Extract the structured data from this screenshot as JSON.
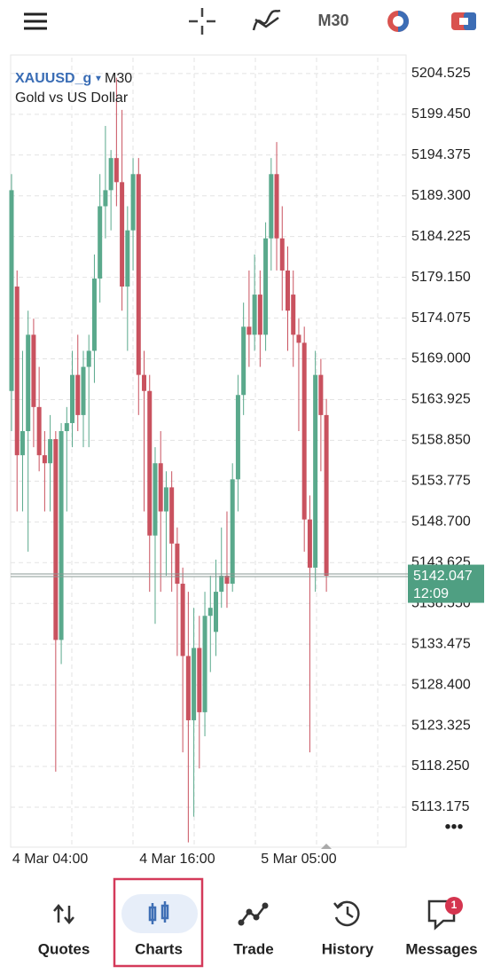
{
  "toolbar": {
    "timeframe": "M30"
  },
  "chart_data": {
    "type": "candlestick",
    "symbol": "XAUUSD_g",
    "timeframe": "M30",
    "subtitle": "Gold vs US Dollar",
    "up_color": "#5aa98c",
    "down_color": "#c9525f",
    "grid": true,
    "ylim": [
      5108.2,
      5206.5
    ],
    "yticks": [
      5204.525,
      {
        "value": 5199.45,
        "label": "5199.450"
      },
      5194.375,
      {
        "value": 5189.3,
        "label": "5189.300"
      },
      5184.225,
      {
        "value": 5179.15,
        "label": "5179.150"
      },
      5174.075,
      {
        "value": 5169,
        "label": "5169.000"
      },
      5163.925,
      {
        "value": 5158.85,
        "label": "5158.850"
      },
      5153.775,
      {
        "value": 5148.7,
        "label": "5148.700"
      },
      5143.625,
      {
        "value": 5138.55,
        "label": "5138.550"
      },
      5133.475,
      {
        "value": 5128.4,
        "label": "5128.400"
      },
      5123.325,
      {
        "value": 5118.25,
        "label": "5118.250"
      },
      5113.175
    ],
    "categories": [
      null,
      null,
      null,
      null,
      null,
      null,
      null,
      "4 Mar 04:00",
      null,
      null,
      null,
      null,
      null,
      null,
      null,
      null,
      null,
      null,
      null,
      null,
      null,
      null,
      null,
      null,
      null,
      null,
      null,
      null,
      null,
      null,
      "4 Mar 16:00",
      null,
      null,
      null,
      null,
      null,
      null,
      null,
      null,
      null,
      null,
      null,
      null,
      null,
      null,
      null,
      null,
      null,
      null,
      null,
      null,
      null,
      "5 Mar 05:00",
      null,
      null,
      null,
      null,
      null
    ],
    "ohlc": [
      [
        5165,
        5192,
        5160,
        5190
      ],
      [
        5178,
        5180,
        5150,
        5157
      ],
      [
        5157,
        5170,
        5150,
        5160
      ],
      [
        5160,
        5175,
        5145,
        5172
      ],
      [
        5172,
        5174,
        5158,
        5163
      ],
      [
        5163,
        5168,
        5155,
        5157
      ],
      [
        5157,
        5160,
        5150,
        5156
      ],
      [
        5156,
        5162,
        5150,
        5159
      ],
      [
        5159,
        5160,
        5117.6,
        5134
      ],
      [
        5134,
        5161,
        5131,
        5160
      ],
      [
        5160,
        5163,
        5150,
        5161
      ],
      [
        5161,
        5170,
        5158,
        5167
      ],
      [
        5167,
        5172,
        5160,
        5162
      ],
      [
        5162,
        5170,
        5158,
        5168
      ],
      [
        5168,
        5172,
        5158,
        5170
      ],
      [
        5170,
        5182,
        5166,
        5179
      ],
      [
        5179,
        5192,
        5176,
        5188
      ],
      [
        5188,
        5198,
        5184,
        5190
      ],
      [
        5190,
        5195,
        5185,
        5194
      ],
      [
        5194,
        5204,
        5188,
        5191
      ],
      [
        5191,
        5200,
        5175,
        5178
      ],
      [
        5178,
        5188,
        5170,
        5185
      ],
      [
        5185,
        5194,
        5180,
        5192
      ],
      [
        5192,
        5194,
        5162,
        5167
      ],
      [
        5167,
        5170,
        5150,
        5165
      ],
      [
        5165,
        5167,
        5140,
        5147
      ],
      [
        5147,
        5158,
        5136,
        5156
      ],
      [
        5156,
        5160,
        5140,
        5150
      ],
      [
        5150,
        5155,
        5142,
        5153
      ],
      [
        5153,
        5155,
        5140,
        5146
      ],
      [
        5146,
        5148,
        5132,
        5141
      ],
      [
        5141,
        5143,
        5120,
        5132
      ],
      [
        5132,
        5140,
        5108.8,
        5124
      ],
      [
        5124,
        5138,
        5112,
        5133
      ],
      [
        5133,
        5137,
        5118,
        5125
      ],
      [
        5125,
        5140,
        5122,
        5137
      ],
      [
        5137,
        5142,
        5130,
        5138
      ],
      [
        5135,
        5144,
        5132,
        5140
      ],
      [
        5140,
        5148,
        5138,
        5142
      ],
      [
        5142,
        5150,
        5138,
        5141
      ],
      [
        5141,
        5156,
        5140,
        5154
      ],
      [
        5154,
        5167,
        5150,
        5164.5
      ],
      [
        5164.5,
        5176,
        5162,
        5173
      ],
      [
        5173,
        5180,
        5168,
        5172
      ],
      [
        5172,
        5182,
        5170,
        5177
      ],
      [
        5177,
        5180,
        5168,
        5172
      ],
      [
        5172,
        5186,
        5170,
        5184
      ],
      [
        5184,
        5194,
        5180,
        5192
      ],
      [
        5192,
        5196,
        5180,
        5184
      ],
      [
        5184,
        5188,
        5175,
        5180
      ],
      [
        5180,
        5183,
        5170,
        5175
      ],
      [
        5177,
        5180,
        5168,
        5172
      ],
      [
        5172,
        5174,
        5160,
        5171
      ],
      [
        5171,
        5173,
        5145,
        5149
      ],
      [
        5149,
        5152,
        5120,
        5143
      ],
      [
        5143,
        5170,
        5140,
        5167
      ],
      [
        5167,
        5169,
        5155,
        5162
      ],
      [
        5162,
        5164,
        5140,
        5142
      ]
    ],
    "current_price": {
      "value": 5142.047,
      "label": "5142.047"
    },
    "timer": "12:09"
  },
  "nav": [
    {
      "label": "Quotes"
    },
    {
      "label": "Charts",
      "selected": true
    },
    {
      "label": "Trade"
    },
    {
      "label": "History"
    },
    {
      "label": "Messages",
      "badge": "1"
    }
  ]
}
